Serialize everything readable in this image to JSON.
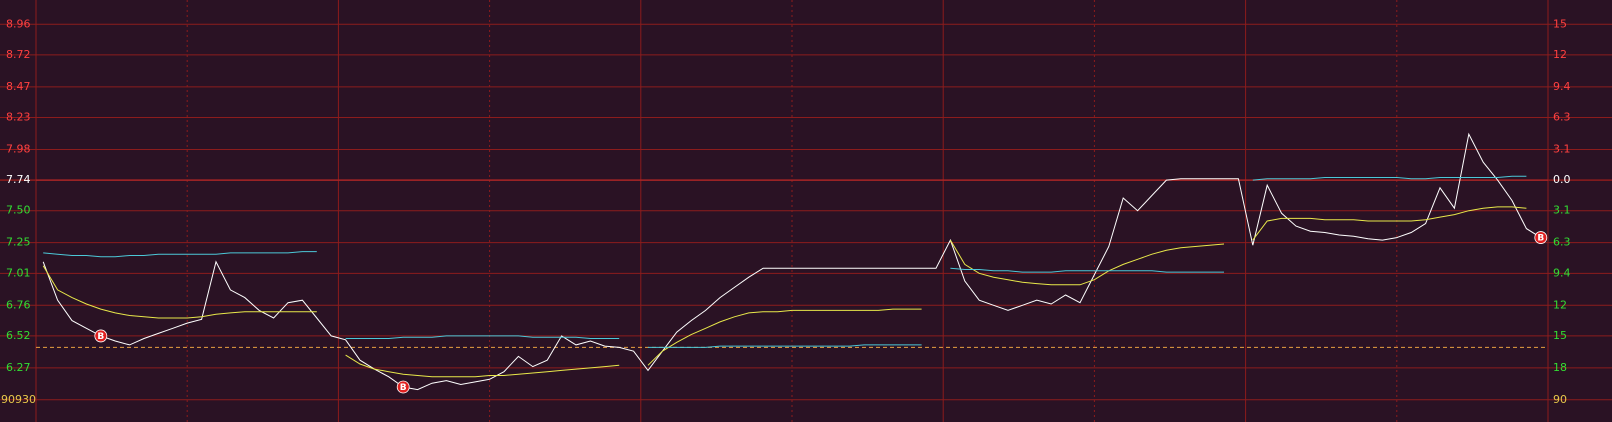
{
  "chart_data": {
    "type": "line",
    "ylim": [
      5.94,
      9.15
    ],
    "yticks": [
      8.96,
      8.72,
      8.47,
      8.23,
      7.98,
      7.74,
      {
        "value": 7.5,
        "label": "7.50"
      },
      7.25,
      7.01,
      6.76,
      6.52,
      6.27
    ],
    "y2_labels": [
      "15",
      "12",
      "9.4",
      "6.3",
      "3.1",
      "0.0",
      "3.1",
      "6.3",
      "9.4",
      "12",
      "15",
      "18",
      "90"
    ],
    "volume_label": "90930",
    "prev_close": 7.74,
    "reference_value": 6.43,
    "days": 5,
    "up_color": "#ff4040",
    "down_color": "#33dd33",
    "flat_color": "#ffffff",
    "volume_color": "#e8c84a",
    "grid_color": "#8c1c1c",
    "reference_color": "#e8a040",
    "series": [
      {
        "color": "#ffffff",
        "values": [
          7.1,
          6.8,
          6.64,
          6.58,
          6.52,
          6.48,
          6.45,
          6.5,
          6.54,
          6.58,
          6.62,
          6.65,
          7.1,
          6.88,
          6.82,
          6.72,
          6.66,
          6.78,
          6.8,
          6.66,
          6.52,
          6.49,
          6.33,
          6.26,
          6.2,
          6.12,
          6.1,
          6.15,
          6.17,
          6.14,
          6.16,
          6.18,
          6.24,
          6.36,
          6.28,
          6.33,
          6.52,
          6.45,
          6.48,
          6.44,
          6.43,
          6.4,
          6.25,
          6.4,
          6.55,
          6.64,
          6.72,
          6.82,
          6.9,
          6.98,
          7.05,
          7.05,
          7.05,
          7.05,
          7.05,
          7.05,
          7.05,
          7.05,
          7.05,
          7.05,
          7.05,
          7.05,
          7.05,
          7.27,
          6.95,
          6.8,
          6.76,
          6.72,
          6.76,
          6.8,
          6.77,
          6.84,
          6.78,
          7.0,
          7.22,
          7.6,
          7.5,
          7.62,
          7.74,
          7.75,
          7.75,
          7.75,
          7.75,
          7.75,
          7.23,
          7.7,
          7.48,
          7.38,
          7.34,
          7.33,
          7.31,
          7.3,
          7.28,
          7.27,
          7.29,
          7.33,
          7.4,
          7.68,
          7.52,
          8.1,
          7.88,
          7.74,
          7.58,
          7.36,
          7.29
        ]
      },
      {
        "color": "#e8e84a",
        "values": [
          7.07,
          6.88,
          6.82,
          6.77,
          6.73,
          6.7,
          6.68,
          6.67,
          6.66,
          6.66,
          6.66,
          6.67,
          6.69,
          6.7,
          6.71,
          6.71,
          6.71,
          6.71,
          6.71,
          6.71,
          null,
          6.37,
          6.3,
          6.26,
          6.24,
          6.22,
          6.21,
          6.2,
          6.2,
          6.2,
          6.2,
          6.21,
          6.21,
          6.22,
          6.23,
          6.24,
          6.25,
          6.26,
          6.27,
          6.28,
          6.29,
          null,
          6.29,
          6.4,
          6.47,
          6.53,
          6.58,
          6.63,
          6.67,
          6.7,
          6.71,
          6.71,
          6.72,
          6.72,
          6.72,
          6.72,
          6.72,
          6.72,
          6.72,
          6.73,
          6.73,
          6.73,
          null,
          7.27,
          7.08,
          7.01,
          6.98,
          6.96,
          6.94,
          6.93,
          6.92,
          6.92,
          6.92,
          6.96,
          7.03,
          7.08,
          7.12,
          7.16,
          7.19,
          7.21,
          7.22,
          7.23,
          7.24,
          null,
          7.27,
          7.42,
          7.44,
          7.44,
          7.44,
          7.43,
          7.43,
          7.43,
          7.42,
          7.42,
          7.42,
          7.42,
          7.43,
          7.45,
          7.47,
          7.5,
          7.52,
          7.53,
          7.53,
          7.52,
          null
        ]
      },
      {
        "color": "#4cc8d8",
        "values": [
          7.17,
          7.16,
          7.15,
          7.15,
          7.14,
          7.14,
          7.15,
          7.15,
          7.16,
          7.16,
          7.16,
          7.16,
          7.16,
          7.17,
          7.17,
          7.17,
          7.17,
          7.17,
          7.18,
          7.18,
          null,
          6.5,
          6.5,
          6.5,
          6.5,
          6.51,
          6.51,
          6.51,
          6.52,
          6.52,
          6.52,
          6.52,
          6.52,
          6.52,
          6.51,
          6.51,
          6.51,
          6.51,
          6.5,
          6.5,
          6.5,
          null,
          6.43,
          6.43,
          6.43,
          6.43,
          6.43,
          6.44,
          6.44,
          6.44,
          6.44,
          6.44,
          6.44,
          6.44,
          6.44,
          6.44,
          6.44,
          6.45,
          6.45,
          6.45,
          6.45,
          6.45,
          null,
          7.05,
          7.04,
          7.04,
          7.03,
          7.03,
          7.02,
          7.02,
          7.02,
          7.03,
          7.03,
          7.03,
          7.03,
          7.03,
          7.03,
          7.03,
          7.02,
          7.02,
          7.02,
          7.02,
          7.02,
          null,
          7.74,
          7.75,
          7.75,
          7.75,
          7.75,
          7.76,
          7.76,
          7.76,
          7.76,
          7.76,
          7.76,
          7.75,
          7.75,
          7.76,
          7.76,
          7.76,
          7.76,
          7.76,
          7.77,
          7.77,
          null
        ]
      }
    ],
    "markers": [
      {
        "label": "B",
        "index": 4
      },
      {
        "label": "B",
        "index": 25
      },
      {
        "label": "B",
        "index": 104
      }
    ]
  }
}
